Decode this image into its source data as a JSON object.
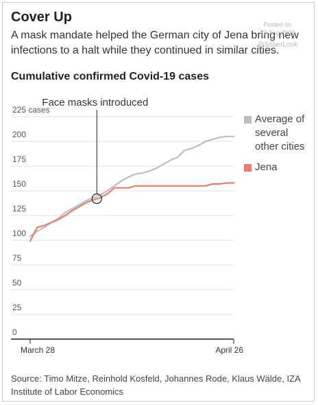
{
  "header": {
    "title": "Cover Up",
    "subtitle": "A mask mandate helped the German city of Jena bring new infections to a halt while they continued in similar cities.",
    "chart_title": "Cumulative confirmed Covid-19 cases"
  },
  "watermark": {
    "line1": "Posted on",
    "line2": "17-Aug-2020",
    "handle": "@SoberLook"
  },
  "source": "Source: Timo Mitze, Reinhold Kosfeld, Johannes Rode, Klaus Wälde, IZA Institute of Labor Economics",
  "colors": {
    "average": "#bdbdbd",
    "jena": "#ec7d6b",
    "axis": "#222222",
    "grid": "#e3e3e3",
    "annotation": "#222222"
  },
  "chart_data": {
    "type": "line",
    "title": "Cumulative confirmed Covid-19 cases",
    "xlabel": "",
    "ylabel": "cases",
    "x_ticks": [
      "March 28",
      "April 26"
    ],
    "x": [
      0,
      1,
      2,
      3,
      4,
      5,
      6,
      7,
      8,
      9,
      10,
      11,
      12,
      13,
      14,
      15,
      16,
      17,
      18,
      19,
      20,
      21,
      22,
      23,
      24,
      25,
      26,
      27,
      28,
      29
    ],
    "x_range": [
      0,
      29
    ],
    "y_ticks": [
      0,
      25,
      50,
      75,
      100,
      125,
      150,
      175,
      200,
      225
    ],
    "y_tick_labels": [
      "0",
      "25",
      "50",
      "75",
      "100",
      "125",
      "150",
      "175",
      "200",
      "225 cases"
    ],
    "ylim": [
      0,
      225
    ],
    "grid": true,
    "legend": "right",
    "series": [
      {
        "name": "Average of several other cities",
        "color": "#bdbdbd",
        "values": [
          104,
          109,
          113,
          118,
          122,
          128,
          132,
          136,
          140,
          143,
          146,
          150,
          155,
          160,
          164,
          167,
          168,
          170,
          173,
          177,
          181,
          184,
          191,
          193,
          196,
          200,
          202,
          204,
          205,
          205
        ]
      },
      {
        "name": "Jena",
        "color": "#ec7d6b",
        "values": [
          99,
          113,
          115,
          118,
          121,
          125,
          130,
          134,
          138,
          141,
          143,
          147,
          153,
          153,
          153,
          155,
          155,
          155,
          155,
          155,
          155,
          155,
          155,
          155,
          155,
          155,
          157,
          157,
          158,
          158
        ]
      }
    ],
    "annotations": [
      {
        "text": "Face masks introduced",
        "x": 9.5,
        "y": 142
      }
    ]
  }
}
